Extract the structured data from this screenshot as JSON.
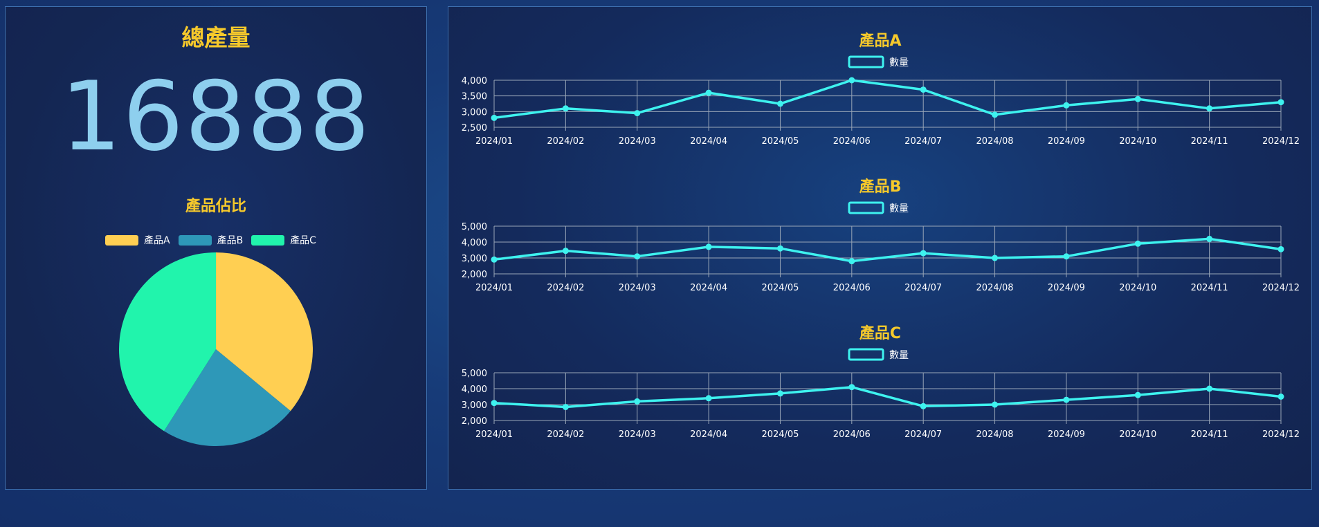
{
  "total": {
    "title": "總產量",
    "value": "16888"
  },
  "pie": {
    "title": "產品佔比",
    "colors": [
      "#ffcf52",
      "#2e98b8",
      "#21f4ac"
    ]
  },
  "chart_data": [
    {
      "type": "pie",
      "title": "產品佔比",
      "labels": [
        "產品A",
        "產品B",
        "產品C"
      ],
      "values": [
        36,
        23,
        41
      ],
      "legend": "top"
    },
    {
      "type": "line",
      "title": "產品A",
      "categories": [
        "2024/01",
        "2024/02",
        "2024/03",
        "2024/04",
        "2024/05",
        "2024/06",
        "2024/07",
        "2024/08",
        "2024/09",
        "2024/10",
        "2024/11",
        "2024/12"
      ],
      "series": [
        {
          "name": "數量",
          "values": [
            2800,
            3100,
            2950,
            3600,
            3250,
            4000,
            3700,
            2900,
            3200,
            3400,
            3100,
            3300
          ]
        }
      ],
      "ylim": [
        2500,
        4000
      ],
      "yticks": [
        2500,
        3000,
        3500,
        4000
      ],
      "yticklabels": [
        "2,500",
        "3,000",
        "3,500",
        "4,000"
      ],
      "grid": true,
      "legend": "top"
    },
    {
      "type": "line",
      "title": "產品B",
      "categories": [
        "2024/01",
        "2024/02",
        "2024/03",
        "2024/04",
        "2024/05",
        "2024/06",
        "2024/07",
        "2024/08",
        "2024/09",
        "2024/10",
        "2024/11",
        "2024/12"
      ],
      "series": [
        {
          "name": "數量",
          "values": [
            2900,
            3450,
            3100,
            3700,
            3600,
            2800,
            3300,
            3000,
            3100,
            3900,
            4200,
            3550
          ]
        }
      ],
      "ylim": [
        2000,
        5000
      ],
      "yticks": [
        2000,
        3000,
        4000,
        5000
      ],
      "yticklabels": [
        "2,000",
        "3,000",
        "4,000",
        "5,000"
      ],
      "grid": true,
      "legend": "top"
    },
    {
      "type": "line",
      "title": "產品C",
      "categories": [
        "2024/01",
        "2024/02",
        "2024/03",
        "2024/04",
        "2024/05",
        "2024/06",
        "2024/07",
        "2024/08",
        "2024/09",
        "2024/10",
        "2024/11",
        "2024/12"
      ],
      "series": [
        {
          "name": "數量",
          "values": [
            3100,
            2850,
            3200,
            3400,
            3700,
            4100,
            2900,
            3000,
            3300,
            3600,
            4000,
            3500
          ]
        }
      ],
      "ylim": [
        2000,
        5000
      ],
      "yticks": [
        2000,
        3000,
        4000,
        5000
      ],
      "yticklabels": [
        "2,000",
        "3,000",
        "4,000",
        "5,000"
      ],
      "grid": true,
      "legend": "top"
    }
  ],
  "line_color": "#3ef2ef"
}
